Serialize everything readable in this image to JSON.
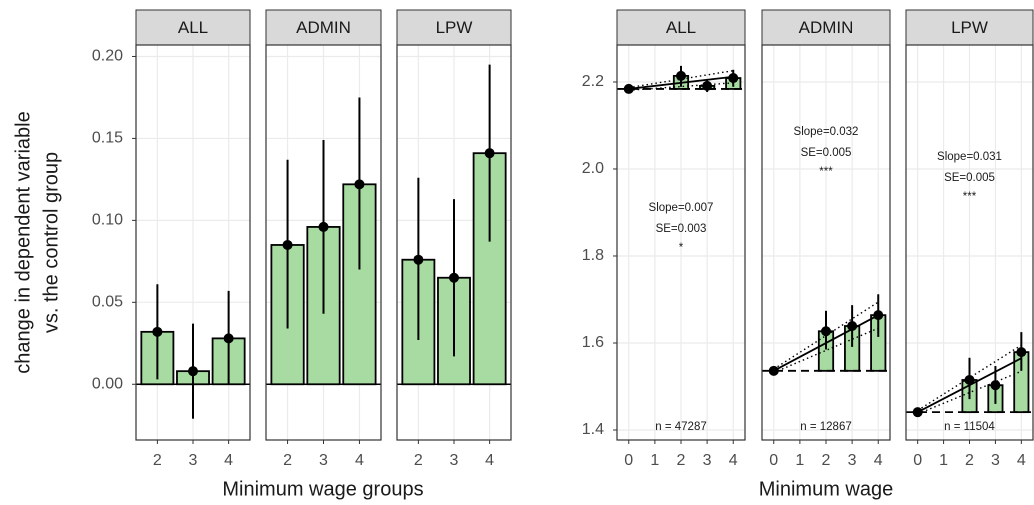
{
  "chart_data": [
    {
      "type": "bar",
      "ylabel": [
        "change in dependent variable",
        "vs. the control group"
      ],
      "xlabel": "Minimum wage groups",
      "categories": [
        "2",
        "3",
        "4"
      ],
      "ylim": [
        -0.034,
        0.207
      ],
      "yticks": [
        {
          "value": 0,
          "label": "0.00"
        },
        0.05,
        {
          "value": 0.1,
          "label": "0.10"
        },
        0.15,
        {
          "value": 0.2,
          "label": "0.20"
        }
      ],
      "grid": true,
      "color": "#a8dba2",
      "facets": [
        {
          "title": "ALL",
          "values": [
            0.032,
            0.008,
            0.028
          ],
          "ci_low": [
            0.003,
            -0.021,
            0.0
          ],
          "ci_high": [
            0.061,
            0.037,
            0.057
          ]
        },
        {
          "title": "ADMIN",
          "values": [
            0.085,
            0.096,
            0.122
          ],
          "ci_low": [
            0.034,
            0.043,
            0.07
          ],
          "ci_high": [
            0.137,
            0.149,
            0.175
          ]
        },
        {
          "title": "LPW",
          "values": [
            0.076,
            0.065,
            0.141
          ],
          "ci_low": [
            0.027,
            0.017,
            0.087
          ],
          "ci_high": [
            0.126,
            0.113,
            0.195
          ]
        }
      ]
    },
    {
      "type": "bar_fit",
      "xlabel": "Minimum wage",
      "x": [
        0,
        2,
        3,
        4
      ],
      "xlim": [
        -0.45,
        4.45
      ],
      "xticks": [
        0,
        1,
        2,
        3,
        4
      ],
      "ylim": [
        1.377,
        2.285
      ],
      "yticks": [
        1.4,
        1.6,
        1.8,
        {
          "value": 2,
          "label": "2.0"
        },
        2.2
      ],
      "grid": true,
      "color": "#a8dba2",
      "facets": [
        {
          "title": "ALL",
          "values": [
            2.184,
            2.214,
            2.191,
            2.209
          ],
          "ci_low": [
            null,
            2.189,
            2.177,
            2.189
          ],
          "ci_high": [
            null,
            2.237,
            2.205,
            2.228
          ],
          "fit_x": [
            0,
            4
          ],
          "fit": [
            2.184,
            2.212
          ],
          "fit_low": [
            2.181,
            2.198
          ],
          "fit_high": [
            2.187,
            2.226
          ],
          "slope_label": "Slope=0.007",
          "se_label": "SE=0.003",
          "stars": "*",
          "n_label": "n = 47287"
        },
        {
          "title": "ADMIN",
          "values": [
            1.536,
            1.627,
            1.639,
            1.664
          ],
          "ci_low": [
            null,
            1.585,
            1.591,
            1.614
          ],
          "ci_high": [
            null,
            1.674,
            1.687,
            1.712
          ],
          "fit_x": [
            0,
            4
          ],
          "fit": [
            1.536,
            1.664
          ],
          "fit_low": [
            1.532,
            1.634
          ],
          "fit_high": [
            1.54,
            1.694
          ],
          "slope_label": "Slope=0.032",
          "se_label": "SE=0.005",
          "stars": "***",
          "n_label": "n = 12867"
        },
        {
          "title": "LPW",
          "values": [
            1.441,
            1.515,
            1.503,
            1.579
          ],
          "ci_low": [
            null,
            1.471,
            1.46,
            1.536
          ],
          "ci_high": [
            null,
            1.566,
            1.547,
            1.625
          ],
          "fit_x": [
            0,
            4
          ],
          "fit": [
            1.441,
            1.565
          ],
          "fit_low": [
            1.437,
            1.535
          ],
          "fit_high": [
            1.445,
            1.595
          ],
          "slope_label": "Slope=0.031",
          "se_label": "SE=0.005",
          "stars": "***",
          "n_label": "n = 11504"
        }
      ]
    }
  ]
}
